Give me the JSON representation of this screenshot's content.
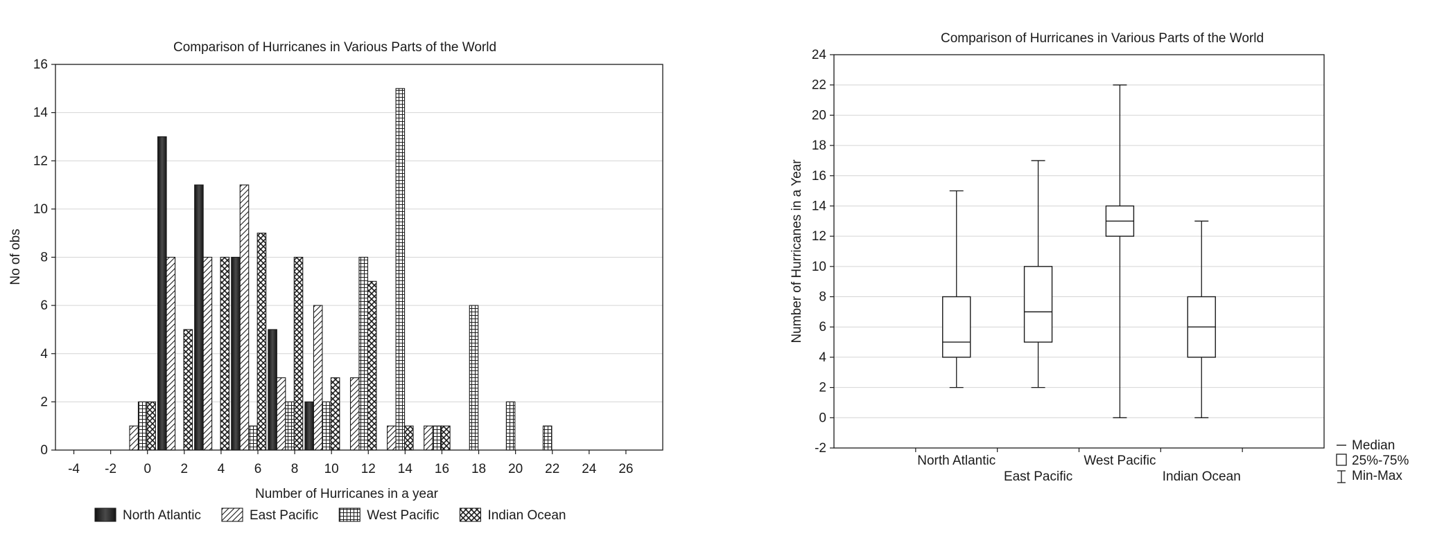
{
  "chart_data": [
    {
      "type": "bar",
      "title": "Comparison of Hurricanes in Various Parts of the World",
      "xlabel": "Number of Hurricanes in a year",
      "ylabel": "No of obs",
      "xlim": [
        -5,
        28
      ],
      "ylim": [
        0,
        16
      ],
      "x_ticks": [
        -4,
        -2,
        0,
        2,
        4,
        6,
        8,
        10,
        12,
        14,
        16,
        18,
        20,
        22,
        24,
        26
      ],
      "y_ticks": [
        0,
        2,
        4,
        6,
        8,
        10,
        12,
        14,
        16
      ],
      "bin_width": 2,
      "bin_centers": [
        -0.5,
        1.5,
        3.5,
        5.5,
        7.5,
        9.5,
        11.5,
        13.5,
        15.5,
        17.5,
        19.5,
        21.5
      ],
      "grid": "horizontal",
      "legend": "bottom",
      "series": [
        {
          "name": "North Atlantic",
          "pattern": "solid",
          "values": [
            0,
            13,
            11,
            8,
            5,
            2,
            0,
            0,
            0,
            0,
            0,
            0
          ]
        },
        {
          "name": "East Pacific",
          "pattern": "diagonal",
          "values": [
            1,
            8,
            8,
            11,
            3,
            6,
            3,
            1,
            1,
            0,
            0,
            0
          ]
        },
        {
          "name": "West Pacific",
          "pattern": "grid",
          "values": [
            2,
            0,
            0,
            1,
            2,
            2,
            8,
            15,
            1,
            6,
            2,
            1
          ]
        },
        {
          "name": "Indian Ocean",
          "pattern": "crosshatch",
          "values": [
            2,
            5,
            8,
            9,
            8,
            3,
            7,
            1,
            1,
            0,
            0,
            0
          ]
        }
      ]
    },
    {
      "type": "box",
      "title": "Comparison of Hurricanes in Various Parts of the World",
      "xlabel": "",
      "ylabel": "Number of Hurricanes in a Year",
      "ylim": [
        -2,
        24
      ],
      "y_ticks": [
        -2,
        0,
        2,
        4,
        6,
        8,
        10,
        12,
        14,
        16,
        18,
        20,
        22,
        24
      ],
      "grid": "horizontal",
      "legend": "bottom-right",
      "legend_items": [
        "Median",
        "25%-75%",
        "Min-Max"
      ],
      "categories": [
        "North Atlantic",
        "East Pacific",
        "West Pacific",
        "Indian Ocean"
      ],
      "boxes": [
        {
          "name": "North Atlantic",
          "min": 2,
          "q1": 4,
          "median": 5,
          "q3": 8,
          "max": 15
        },
        {
          "name": "East Pacific",
          "min": 2,
          "q1": 5,
          "median": 7,
          "q3": 10,
          "max": 17
        },
        {
          "name": "West Pacific",
          "min": 0,
          "q1": 12,
          "median": 13,
          "q3": 14,
          "max": 22
        },
        {
          "name": "Indian Ocean",
          "min": 0,
          "q1": 4,
          "median": 6,
          "q3": 8,
          "max": 13
        }
      ]
    }
  ]
}
